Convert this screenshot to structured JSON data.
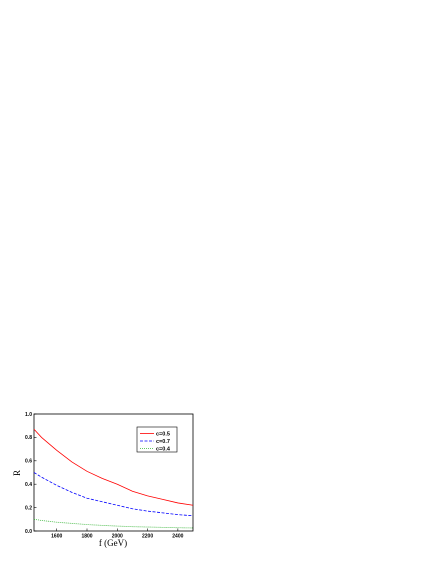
{
  "chart_data": {
    "type": "line",
    "title": "",
    "xlabel": "f (GeV)",
    "ylabel": "R",
    "xlim": [
      1450,
      2500
    ],
    "ylim": [
      0.0,
      1.0
    ],
    "x_ticks": [
      1600,
      1800,
      2000,
      2200,
      2400
    ],
    "x_tick_labels": [
      "1600",
      "1800",
      "2000",
      "2200",
      "2400"
    ],
    "y_ticks": [
      0.0,
      0.2,
      0.4,
      0.6,
      0.8,
      1.0
    ],
    "y_tick_labels": [
      "0.0",
      "0.2",
      "0.4",
      "0.6",
      "0.8",
      "1.0"
    ],
    "grid": false,
    "legend_position": "top-right",
    "series": [
      {
        "name": "c=0.5",
        "color": "#ff0000",
        "dash": "solid",
        "x": [
          1450,
          1500,
          1600,
          1700,
          1800,
          1900,
          2000,
          2100,
          2200,
          2300,
          2400,
          2500
        ],
        "y": [
          0.87,
          0.8,
          0.69,
          0.59,
          0.51,
          0.45,
          0.4,
          0.34,
          0.3,
          0.27,
          0.24,
          0.22
        ]
      },
      {
        "name": "c=0.7",
        "color": "#0000ff",
        "dash": "dashed",
        "x": [
          1450,
          1500,
          1600,
          1700,
          1800,
          1900,
          2000,
          2100,
          2200,
          2300,
          2400,
          2500
        ],
        "y": [
          0.5,
          0.46,
          0.39,
          0.33,
          0.28,
          0.25,
          0.22,
          0.19,
          0.17,
          0.155,
          0.14,
          0.13
        ]
      },
      {
        "name": "c=0.4",
        "color": "#00a000",
        "dash": "dotted",
        "x": [
          1450,
          1500,
          1600,
          1700,
          1800,
          1900,
          2000,
          2100,
          2200,
          2300,
          2400,
          2500
        ],
        "y": [
          0.1,
          0.09,
          0.075,
          0.065,
          0.055,
          0.048,
          0.042,
          0.037,
          0.034,
          0.031,
          0.028,
          0.026
        ]
      }
    ]
  }
}
